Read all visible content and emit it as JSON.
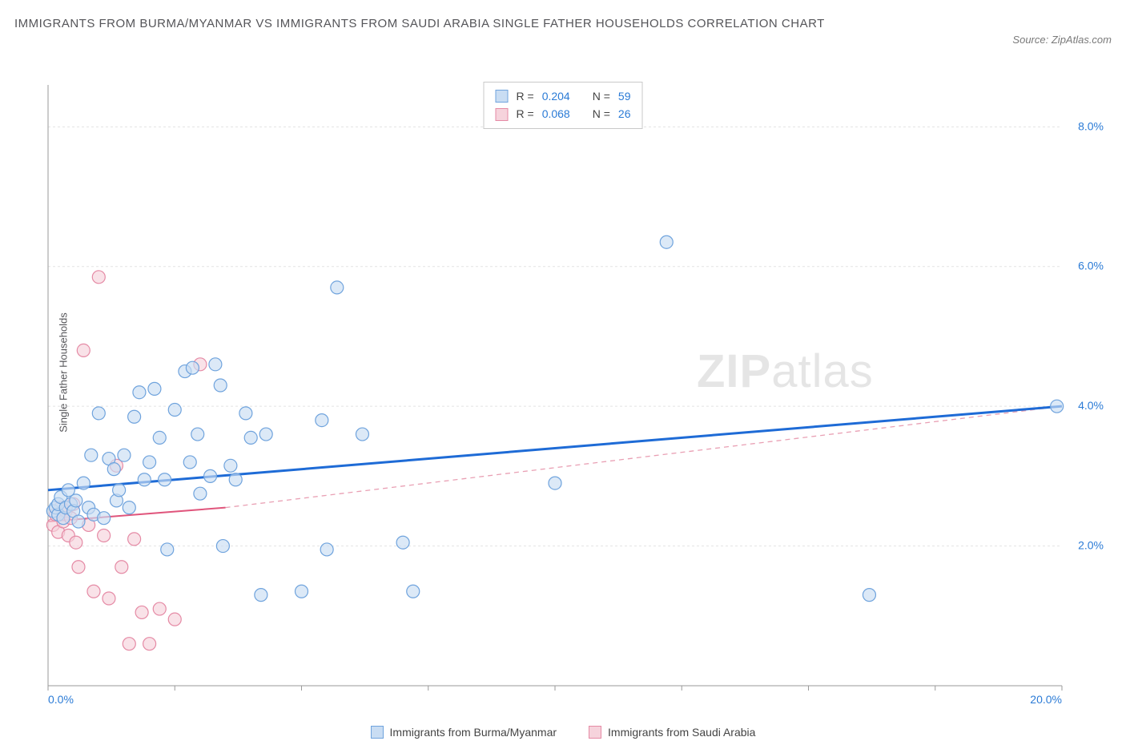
{
  "title": "IMMIGRANTS FROM BURMA/MYANMAR VS IMMIGRANTS FROM SAUDI ARABIA SINGLE FATHER HOUSEHOLDS CORRELATION CHART",
  "source_label": "Source:",
  "source_value": "ZipAtlas.com",
  "ylabel": "Single Father Households",
  "watermark_bold": "ZIP",
  "watermark_light": "atlas",
  "chart": {
    "type": "scatter",
    "xlim": [
      0,
      20
    ],
    "ylim": [
      0,
      8.6
    ],
    "x_ticks": [
      0,
      2.5,
      5,
      7.5,
      10,
      12.5,
      15,
      17.5,
      20
    ],
    "x_tick_labels_shown": {
      "0": "0.0%",
      "20": "20.0%"
    },
    "y_gridlines": [
      2,
      4,
      6,
      8
    ],
    "y_tick_labels": {
      "2": "2.0%",
      "4": "4.0%",
      "6": "6.0%",
      "8": "8.0%"
    },
    "background_color": "#ffffff",
    "grid_color": "#e3e3e3",
    "axis_color": "#9a9a9a",
    "marker_radius": 8,
    "marker_stroke_width": 1.2,
    "series": [
      {
        "name": "Immigrants from Burma/Myanmar",
        "fill": "#c9ddf3",
        "stroke": "#6fa3dd",
        "fill_opacity": 0.65,
        "trend": {
          "x1": 0,
          "y1": 2.8,
          "x2": 20,
          "y2": 4.0,
          "color": "#1e6bd6",
          "width": 3,
          "dash": null
        },
        "R_label": "R =",
        "R": "0.204",
        "N_label": "N =",
        "N": "59",
        "points": [
          [
            0.1,
            2.5
          ],
          [
            0.15,
            2.55
          ],
          [
            0.2,
            2.45
          ],
          [
            0.2,
            2.6
          ],
          [
            0.25,
            2.7
          ],
          [
            0.3,
            2.4
          ],
          [
            0.35,
            2.55
          ],
          [
            0.4,
            2.8
          ],
          [
            0.45,
            2.6
          ],
          [
            0.5,
            2.5
          ],
          [
            0.55,
            2.65
          ],
          [
            0.6,
            2.35
          ],
          [
            0.7,
            2.9
          ],
          [
            0.8,
            2.55
          ],
          [
            0.85,
            3.3
          ],
          [
            0.9,
            2.45
          ],
          [
            1.0,
            3.9
          ],
          [
            1.1,
            2.4
          ],
          [
            1.2,
            3.25
          ],
          [
            1.3,
            3.1
          ],
          [
            1.35,
            2.65
          ],
          [
            1.4,
            2.8
          ],
          [
            1.5,
            3.3
          ],
          [
            1.6,
            2.55
          ],
          [
            1.7,
            3.85
          ],
          [
            1.8,
            4.2
          ],
          [
            1.9,
            2.95
          ],
          [
            2.0,
            3.2
          ],
          [
            2.1,
            4.25
          ],
          [
            2.2,
            3.55
          ],
          [
            2.3,
            2.95
          ],
          [
            2.35,
            1.95
          ],
          [
            2.5,
            3.95
          ],
          [
            2.7,
            4.5
          ],
          [
            2.8,
            3.2
          ],
          [
            2.85,
            4.55
          ],
          [
            2.95,
            3.6
          ],
          [
            3.0,
            2.75
          ],
          [
            3.2,
            3.0
          ],
          [
            3.3,
            4.6
          ],
          [
            3.4,
            4.3
          ],
          [
            3.45,
            2.0
          ],
          [
            3.6,
            3.15
          ],
          [
            3.7,
            2.95
          ],
          [
            3.9,
            3.9
          ],
          [
            4.0,
            3.55
          ],
          [
            4.2,
            1.3
          ],
          [
            4.3,
            3.6
          ],
          [
            5.0,
            1.35
          ],
          [
            5.4,
            3.8
          ],
          [
            5.5,
            1.95
          ],
          [
            5.7,
            5.7
          ],
          [
            6.2,
            3.6
          ],
          [
            7.0,
            2.05
          ],
          [
            7.2,
            1.35
          ],
          [
            10.0,
            2.9
          ],
          [
            12.2,
            6.35
          ],
          [
            16.2,
            1.3
          ],
          [
            19.9,
            4.0
          ]
        ]
      },
      {
        "name": "Immigrants from Saudi Arabia",
        "fill": "#f6d3dc",
        "stroke": "#e58aa5",
        "fill_opacity": 0.65,
        "trend_solid": {
          "x1": 0,
          "y1": 2.35,
          "x2": 3.5,
          "y2": 2.55,
          "color": "#e0557c",
          "width": 2
        },
        "trend_dash": {
          "x1": 3.5,
          "y1": 2.55,
          "x2": 20,
          "y2": 4.0,
          "color": "#e9a0b4",
          "width": 1.3,
          "dash": "6 5"
        },
        "R_label": "R =",
        "R": "0.068",
        "N_label": "N =",
        "N": "26",
        "points": [
          [
            0.1,
            2.3
          ],
          [
            0.15,
            2.45
          ],
          [
            0.2,
            2.2
          ],
          [
            0.25,
            2.55
          ],
          [
            0.3,
            2.35
          ],
          [
            0.35,
            2.5
          ],
          [
            0.4,
            2.15
          ],
          [
            0.45,
            2.4
          ],
          [
            0.5,
            2.6
          ],
          [
            0.55,
            2.05
          ],
          [
            0.6,
            1.7
          ],
          [
            0.7,
            4.8
          ],
          [
            0.8,
            2.3
          ],
          [
            0.9,
            1.35
          ],
          [
            1.0,
            5.85
          ],
          [
            1.1,
            2.15
          ],
          [
            1.2,
            1.25
          ],
          [
            1.35,
            3.15
          ],
          [
            1.45,
            1.7
          ],
          [
            1.6,
            0.6
          ],
          [
            1.7,
            2.1
          ],
          [
            1.85,
            1.05
          ],
          [
            2.0,
            0.6
          ],
          [
            2.2,
            1.1
          ],
          [
            2.5,
            0.95
          ],
          [
            3.0,
            4.6
          ]
        ]
      }
    ]
  },
  "legend_bottom": [
    {
      "label": "Immigrants from Burma/Myanmar",
      "fill": "#c9ddf3",
      "stroke": "#6fa3dd"
    },
    {
      "label": "Immigrants from Saudi Arabia",
      "fill": "#f6d3dc",
      "stroke": "#e58aa5"
    }
  ]
}
